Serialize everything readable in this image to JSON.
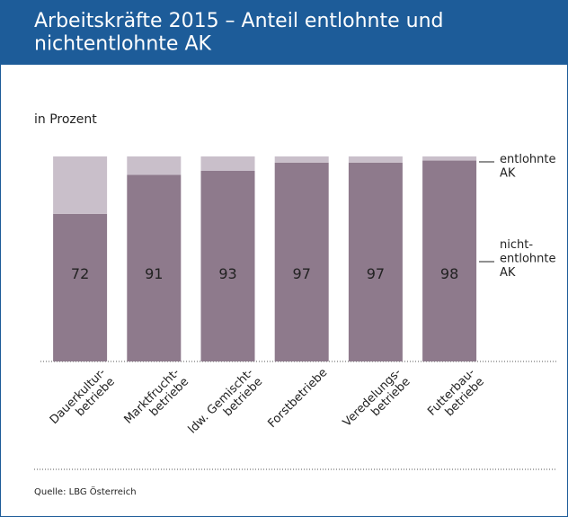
{
  "chart_data": {
    "type": "stacked_bar",
    "title": "Arbeitskräfte 2015 – Anteil entlohnte und\nnichtentlohnte AK",
    "subtitle": "in Prozent",
    "source": "Quelle: LBG Österreich",
    "categories": [
      "Dauerkultur-\nbetriebe",
      "Marktfrucht-\nbetriebe",
      "ldw. Gemischt-\nbetriebe",
      "Forstbetriebe",
      "Veredelungs-\nbetriebe",
      "Futterbau-\nbetriebe"
    ],
    "series": [
      {
        "name": "nicht-\nentlohnte\nAK",
        "color": "#8e7a8c",
        "values": [
          72,
          91,
          93,
          97,
          97,
          98
        ]
      },
      {
        "name": "entlohnte\nAK",
        "color": "#c9bfca",
        "values": [
          28,
          9,
          7,
          3,
          3,
          2
        ]
      }
    ],
    "ylim": [
      0,
      100
    ]
  }
}
